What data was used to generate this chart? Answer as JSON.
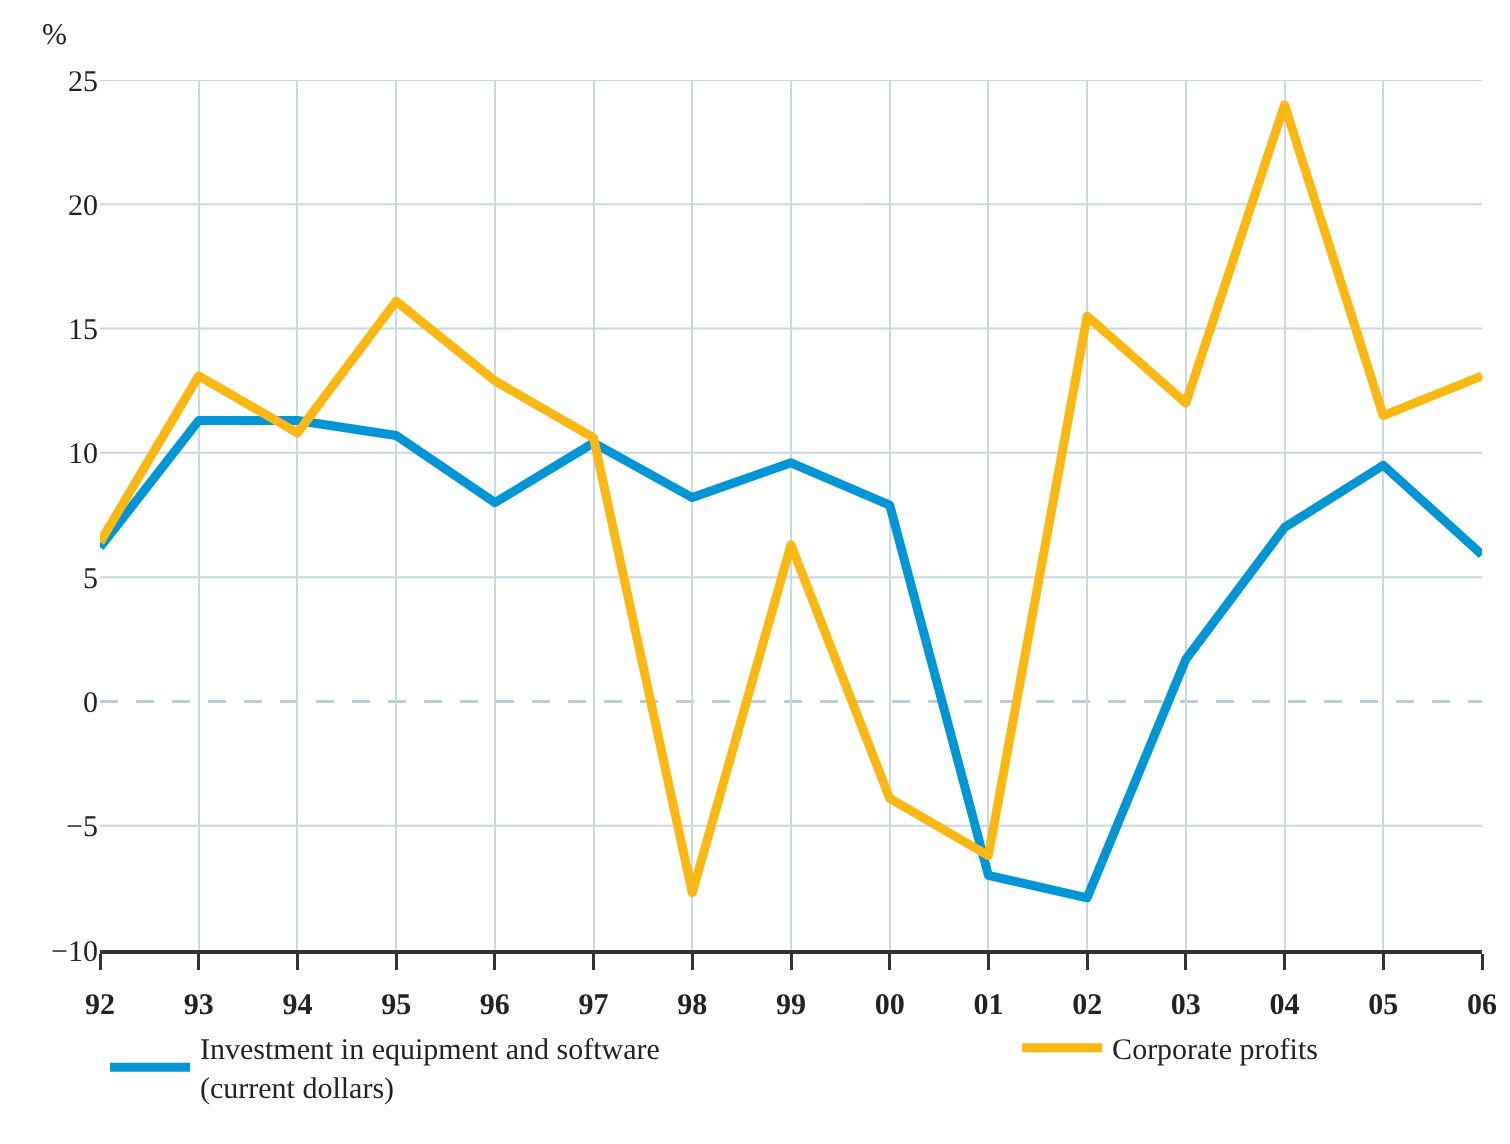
{
  "chart_data": {
    "type": "line",
    "ylabel": "%",
    "categories": [
      "92",
      "93",
      "94",
      "95",
      "96",
      "97",
      "98",
      "99",
      "00",
      "01",
      "02",
      "03",
      "04",
      "05",
      "06"
    ],
    "series": [
      {
        "name": "Investment in equipment and software\n(current dollars)",
        "color": "#0096d6",
        "values": [
          6.2,
          11.3,
          11.3,
          10.7,
          8.0,
          10.4,
          8.2,
          9.6,
          7.9,
          -7.0,
          -7.9,
          1.7,
          7.0,
          9.5,
          5.9
        ]
      },
      {
        "name": "Corporate profits",
        "color": "#fbb813",
        "values": [
          6.4,
          13.1,
          10.8,
          16.1,
          12.9,
          10.6,
          -7.7,
          6.3,
          -3.9,
          -6.2,
          15.5,
          12.0,
          24.0,
          11.5,
          13.1
        ]
      }
    ],
    "ylim": [
      -10,
      25
    ],
    "yticks": [
      -10,
      -5,
      0,
      5,
      10,
      15,
      20,
      25
    ],
    "ref_lines": [
      {
        "axis": "y",
        "value": 0,
        "label": null,
        "color": "#b9cedb",
        "line_style": "dashed"
      }
    ],
    "grid": true,
    "legend": "bottom",
    "marker": "none",
    "line_style": "solid"
  }
}
